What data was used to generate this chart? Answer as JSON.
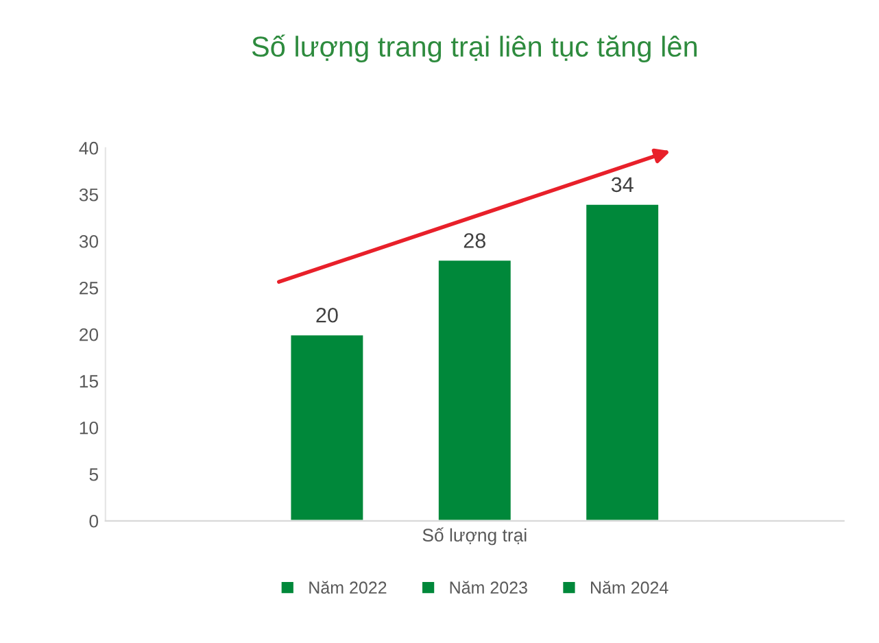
{
  "chart_data": {
    "type": "bar",
    "title": "Số lượng trang trại liên tục tăng lên",
    "categories": [
      "Số lượng trại"
    ],
    "series": [
      {
        "name": "Năm 2022",
        "color": "#00883a",
        "values": [
          20
        ]
      },
      {
        "name": "Năm 2023",
        "color": "#00883a",
        "values": [
          28
        ]
      },
      {
        "name": "Năm 2024",
        "color": "#00883a",
        "values": [
          34
        ]
      }
    ],
    "ylim": [
      0,
      40
    ],
    "yticks": [
      0,
      5,
      10,
      15,
      20,
      25,
      30,
      35,
      40
    ],
    "grid": false,
    "legend": "bottom",
    "data_labels": true
  }
}
